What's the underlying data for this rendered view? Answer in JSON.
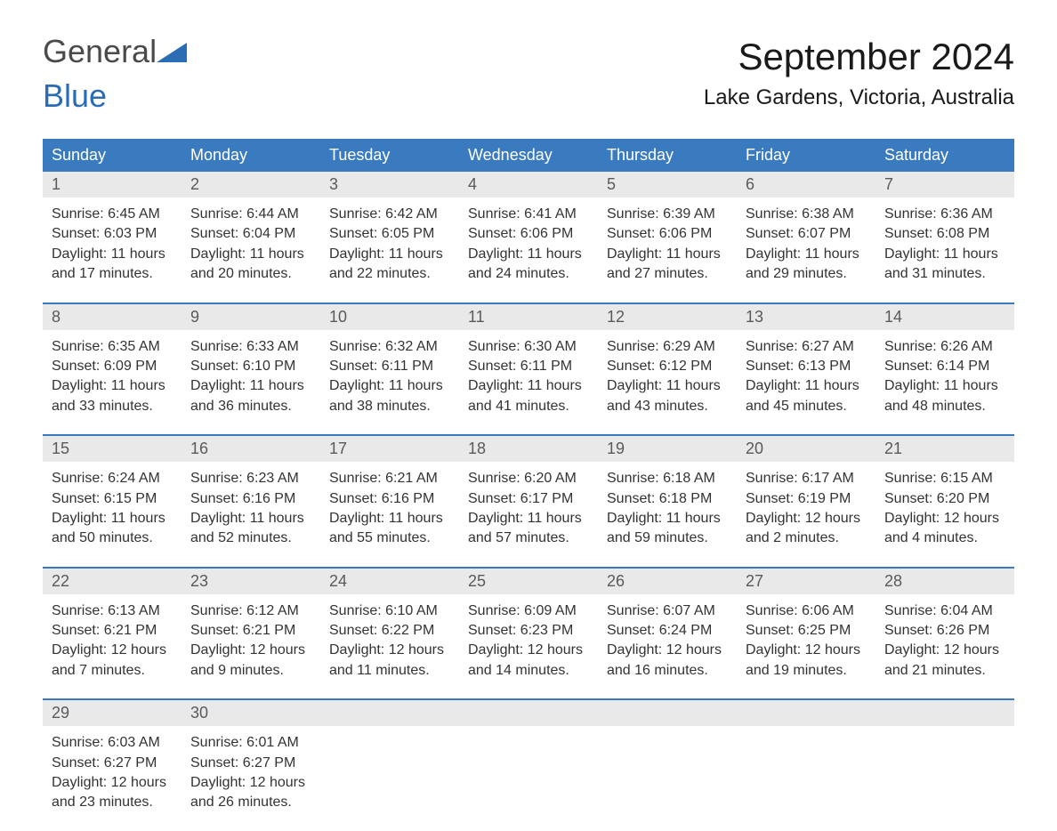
{
  "logo": {
    "line1": "General",
    "line2": "Blue"
  },
  "title": "September 2024",
  "location": "Lake Gardens, Victoria, Australia",
  "colors": {
    "header_bg": "#3a7bc0",
    "header_text": "#ffffff",
    "daynum_bg": "#e9e9e9",
    "daynum_text": "#5a5a5a",
    "body_text": "#333333",
    "logo_gray": "#4a4a4a",
    "logo_blue": "#2a6db5",
    "accent": "#2a6db5",
    "background": "#ffffff"
  },
  "typography": {
    "month_fontsize": 42,
    "location_fontsize": 24,
    "dayhead_fontsize": 18,
    "daynum_fontsize": 18,
    "detail_fontsize": 16,
    "font_family": "Arial"
  },
  "dayHeaders": [
    "Sunday",
    "Monday",
    "Tuesday",
    "Wednesday",
    "Thursday",
    "Friday",
    "Saturday"
  ],
  "weeks": [
    [
      {
        "n": "1",
        "sr": "6:45 AM",
        "ss": "6:03 PM",
        "dl": "11 hours and 17 minutes."
      },
      {
        "n": "2",
        "sr": "6:44 AM",
        "ss": "6:04 PM",
        "dl": "11 hours and 20 minutes."
      },
      {
        "n": "3",
        "sr": "6:42 AM",
        "ss": "6:05 PM",
        "dl": "11 hours and 22 minutes."
      },
      {
        "n": "4",
        "sr": "6:41 AM",
        "ss": "6:06 PM",
        "dl": "11 hours and 24 minutes."
      },
      {
        "n": "5",
        "sr": "6:39 AM",
        "ss": "6:06 PM",
        "dl": "11 hours and 27 minutes."
      },
      {
        "n": "6",
        "sr": "6:38 AM",
        "ss": "6:07 PM",
        "dl": "11 hours and 29 minutes."
      },
      {
        "n": "7",
        "sr": "6:36 AM",
        "ss": "6:08 PM",
        "dl": "11 hours and 31 minutes."
      }
    ],
    [
      {
        "n": "8",
        "sr": "6:35 AM",
        "ss": "6:09 PM",
        "dl": "11 hours and 33 minutes."
      },
      {
        "n": "9",
        "sr": "6:33 AM",
        "ss": "6:10 PM",
        "dl": "11 hours and 36 minutes."
      },
      {
        "n": "10",
        "sr": "6:32 AM",
        "ss": "6:11 PM",
        "dl": "11 hours and 38 minutes."
      },
      {
        "n": "11",
        "sr": "6:30 AM",
        "ss": "6:11 PM",
        "dl": "11 hours and 41 minutes."
      },
      {
        "n": "12",
        "sr": "6:29 AM",
        "ss": "6:12 PM",
        "dl": "11 hours and 43 minutes."
      },
      {
        "n": "13",
        "sr": "6:27 AM",
        "ss": "6:13 PM",
        "dl": "11 hours and 45 minutes."
      },
      {
        "n": "14",
        "sr": "6:26 AM",
        "ss": "6:14 PM",
        "dl": "11 hours and 48 minutes."
      }
    ],
    [
      {
        "n": "15",
        "sr": "6:24 AM",
        "ss": "6:15 PM",
        "dl": "11 hours and 50 minutes."
      },
      {
        "n": "16",
        "sr": "6:23 AM",
        "ss": "6:16 PM",
        "dl": "11 hours and 52 minutes."
      },
      {
        "n": "17",
        "sr": "6:21 AM",
        "ss": "6:16 PM",
        "dl": "11 hours and 55 minutes."
      },
      {
        "n": "18",
        "sr": "6:20 AM",
        "ss": "6:17 PM",
        "dl": "11 hours and 57 minutes."
      },
      {
        "n": "19",
        "sr": "6:18 AM",
        "ss": "6:18 PM",
        "dl": "11 hours and 59 minutes."
      },
      {
        "n": "20",
        "sr": "6:17 AM",
        "ss": "6:19 PM",
        "dl": "12 hours and 2 minutes."
      },
      {
        "n": "21",
        "sr": "6:15 AM",
        "ss": "6:20 PM",
        "dl": "12 hours and 4 minutes."
      }
    ],
    [
      {
        "n": "22",
        "sr": "6:13 AM",
        "ss": "6:21 PM",
        "dl": "12 hours and 7 minutes."
      },
      {
        "n": "23",
        "sr": "6:12 AM",
        "ss": "6:21 PM",
        "dl": "12 hours and 9 minutes."
      },
      {
        "n": "24",
        "sr": "6:10 AM",
        "ss": "6:22 PM",
        "dl": "12 hours and 11 minutes."
      },
      {
        "n": "25",
        "sr": "6:09 AM",
        "ss": "6:23 PM",
        "dl": "12 hours and 14 minutes."
      },
      {
        "n": "26",
        "sr": "6:07 AM",
        "ss": "6:24 PM",
        "dl": "12 hours and 16 minutes."
      },
      {
        "n": "27",
        "sr": "6:06 AM",
        "ss": "6:25 PM",
        "dl": "12 hours and 19 minutes."
      },
      {
        "n": "28",
        "sr": "6:04 AM",
        "ss": "6:26 PM",
        "dl": "12 hours and 21 minutes."
      }
    ],
    [
      {
        "n": "29",
        "sr": "6:03 AM",
        "ss": "6:27 PM",
        "dl": "12 hours and 23 minutes."
      },
      {
        "n": "30",
        "sr": "6:01 AM",
        "ss": "6:27 PM",
        "dl": "12 hours and 26 minutes."
      },
      null,
      null,
      null,
      null,
      null
    ]
  ],
  "labels": {
    "sunrise": "Sunrise: ",
    "sunset": "Sunset: ",
    "daylight": "Daylight: "
  }
}
